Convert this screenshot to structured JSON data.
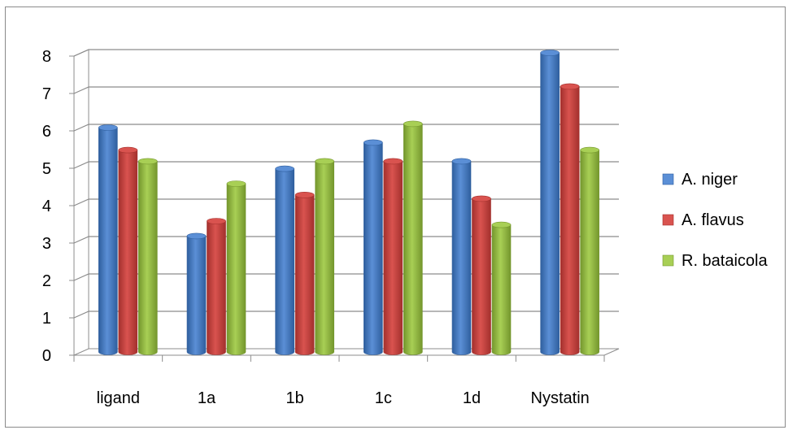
{
  "chart_data": {
    "type": "bar",
    "title": "",
    "xlabel": "",
    "ylabel": "",
    "categories": [
      "ligand",
      "1a",
      "1b",
      "1c",
      "1d",
      "Nystatin"
    ],
    "series": [
      {
        "name": "A. niger",
        "values": [
          6.0,
          3.1,
          4.9,
          5.6,
          5.1,
          8.0
        ]
      },
      {
        "name": "A. flavus",
        "values": [
          5.4,
          3.5,
          4.2,
          5.1,
          4.1,
          7.1
        ]
      },
      {
        "name": "R. bataicola",
        "values": [
          5.1,
          4.5,
          5.1,
          6.1,
          3.4,
          5.4
        ]
      }
    ],
    "ylim": [
      0,
      8
    ],
    "yticks": [
      "0",
      "1",
      "2",
      "3",
      "4",
      "5",
      "6",
      "7",
      "8"
    ],
    "grid": true,
    "legend_position": "right",
    "style": "3d clustered column"
  },
  "colors": {
    "A. niger": {
      "light": "#5b8fd6",
      "dark": "#2f5f9e"
    },
    "A. flavus": {
      "light": "#d9534f",
      "dark": "#a3302d"
    },
    "R. bataicola": {
      "light": "#a8cf55",
      "dark": "#74962d"
    }
  }
}
